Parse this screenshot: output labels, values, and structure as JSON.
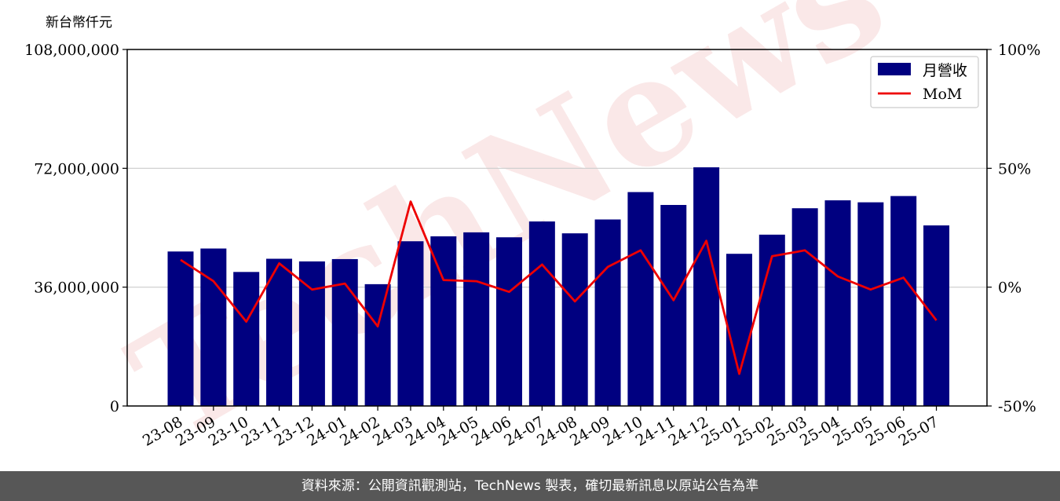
{
  "unit_label": "新台幣仟元",
  "watermark": "TechNews",
  "footer_text": "資料來源：公開資訊觀測站，TechNews 製表，確切最新訊息以原站公告為準",
  "colors": {
    "bar": "#000080",
    "line": "#ee0000",
    "grid": "#cccccc",
    "footer_bg": "#575757",
    "watermark": "#f5d5d5"
  },
  "chart_data": {
    "type": "bar",
    "categories": [
      "23-08",
      "23-09",
      "23-10",
      "23-11",
      "23-12",
      "24-01",
      "24-02",
      "24-03",
      "24-04",
      "24-05",
      "24-06",
      "24-07",
      "24-08",
      "24-09",
      "24-10",
      "24-11",
      "24-12",
      "25-01",
      "25-02",
      "25-03",
      "25-04",
      "25-05",
      "25-06",
      "25-07"
    ],
    "series": [
      {
        "name": "月營收",
        "type": "bar",
        "axis": "left",
        "values": [
          46800000,
          47700000,
          40600000,
          44600000,
          43800000,
          44500000,
          36900000,
          49900000,
          51400000,
          52600000,
          51100000,
          55900000,
          52300000,
          56500000,
          64800000,
          60900000,
          72300000,
          46100000,
          51900000,
          59900000,
          62300000,
          61700000,
          63600000,
          54700000
        ]
      },
      {
        "name": "MoM",
        "type": "line",
        "axis": "right",
        "values": [
          11.5,
          2.5,
          -14.5,
          10.0,
          -1.0,
          1.5,
          -16.5,
          36.0,
          3.0,
          2.5,
          -2.0,
          9.5,
          -6.0,
          8.5,
          15.5,
          -5.5,
          19.5,
          -36.5,
          13.0,
          15.5,
          4.5,
          -1.0,
          4.0,
          -14.0
        ]
      }
    ],
    "y_left": {
      "min": 0,
      "max": 108000000,
      "ticks": [
        "0",
        "36,000,000",
        "72,000,000",
        "108,000,000"
      ],
      "tick_values": [
        0,
        36000000,
        72000000,
        108000000
      ]
    },
    "y_right": {
      "min": -50,
      "max": 100,
      "ticks": [
        "-50%",
        "0%",
        "50%",
        "100%"
      ],
      "tick_values": [
        -50,
        0,
        50,
        100
      ]
    },
    "grid": "horizontal",
    "legend_position": "top-right",
    "xtick_rotation": 30
  }
}
